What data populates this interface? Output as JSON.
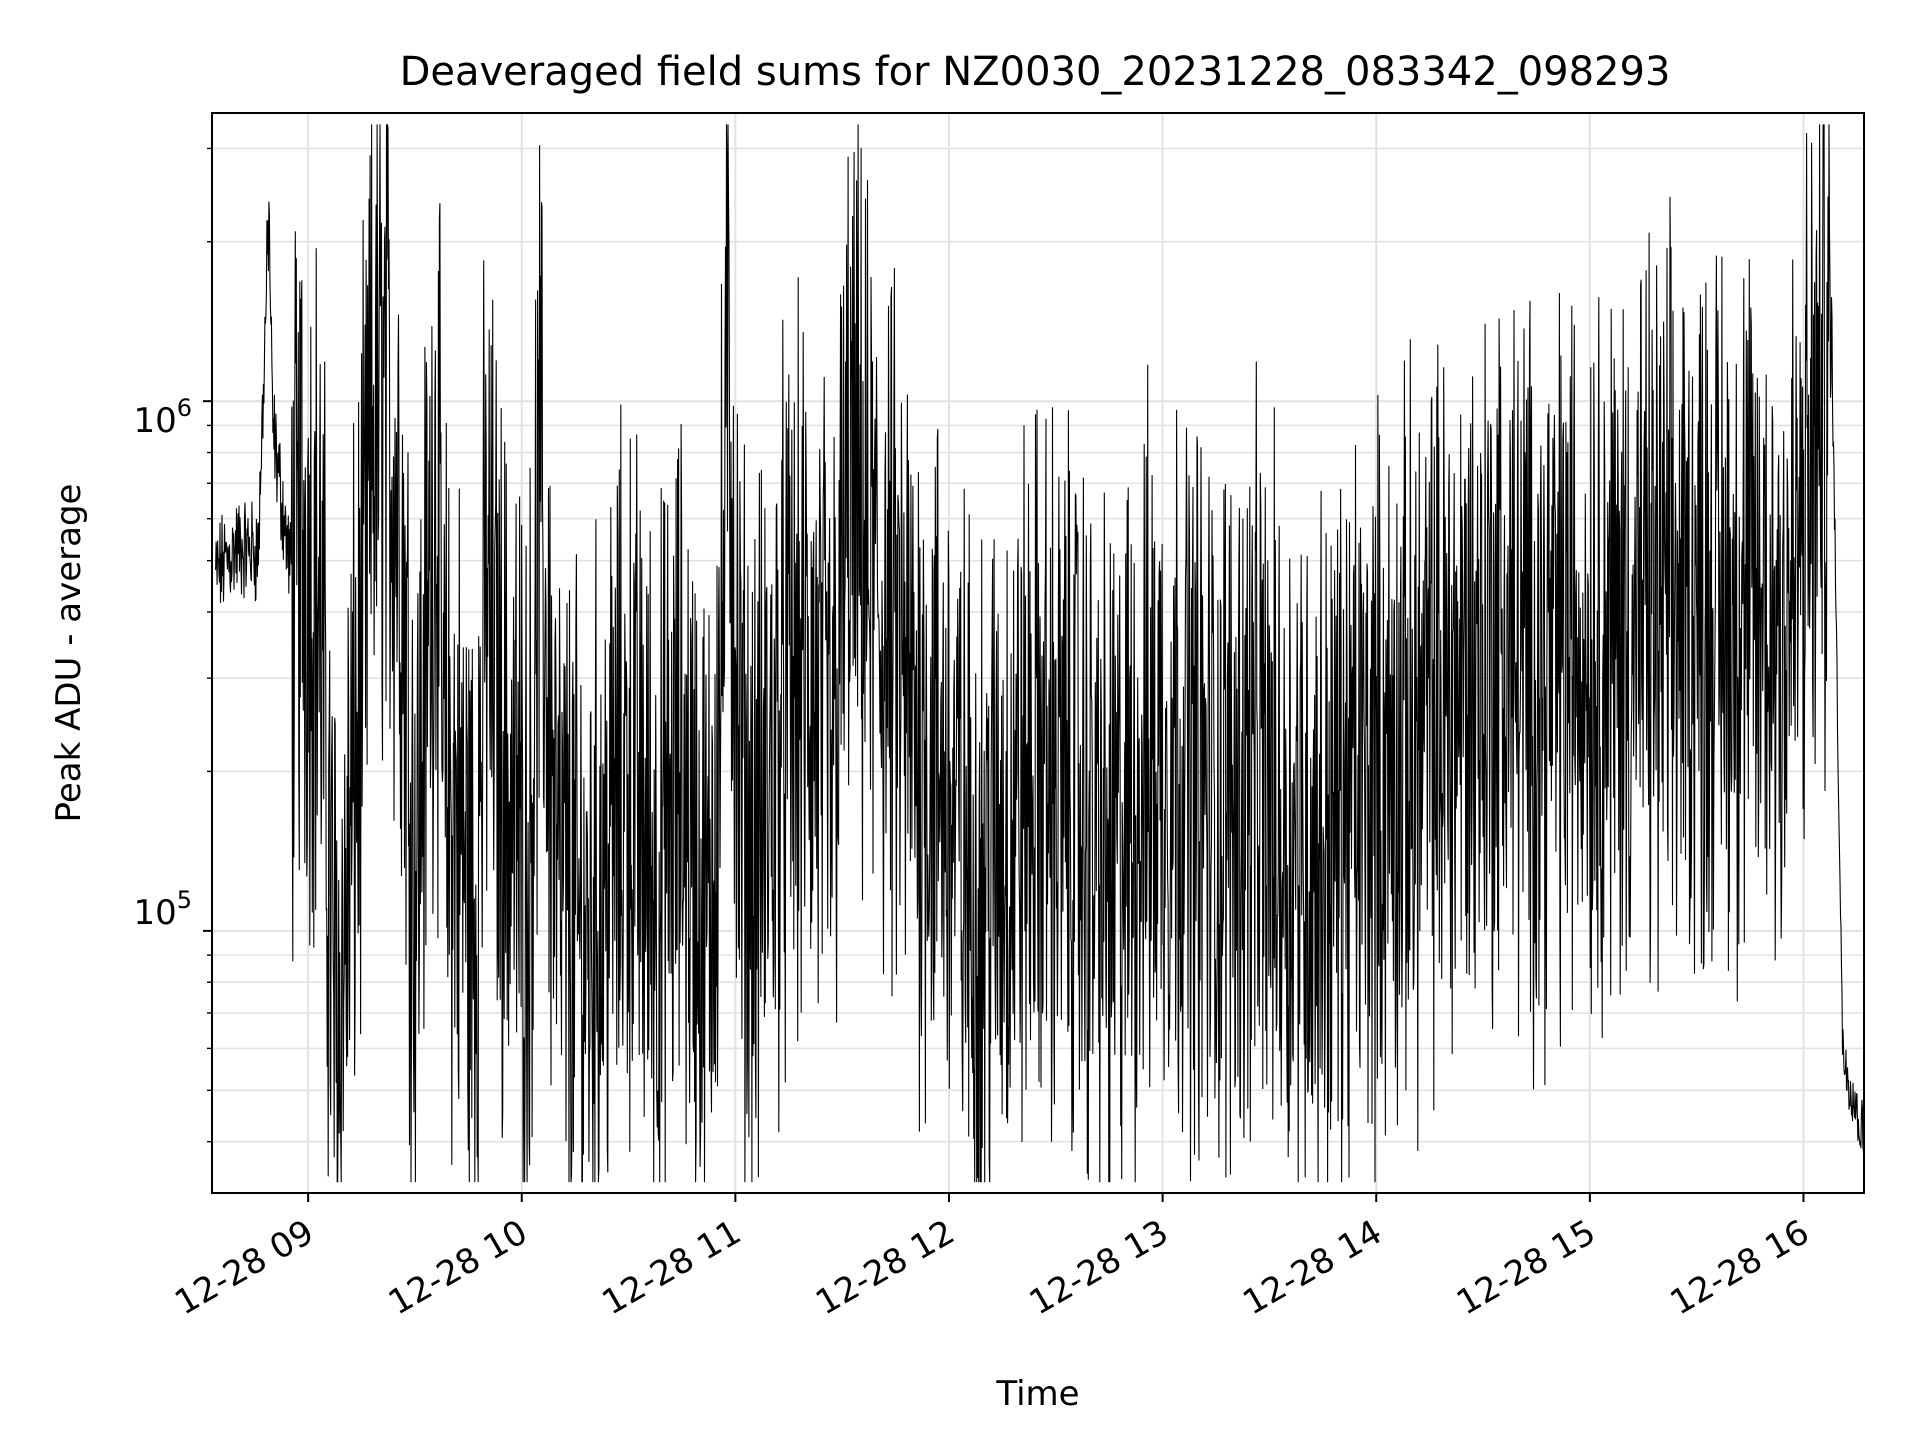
{
  "chart_data": {
    "type": "line",
    "title": "Deaveraged field sums for NZ0030_20231228_083342_098293",
    "xlabel": "Time",
    "ylabel": "Peak ADU - average",
    "y_scale": "log",
    "ylim": [
      32000,
      3500000
    ],
    "xlim": [
      "2023-12-28 08:33",
      "2023-12-28 16:17"
    ],
    "x_tick_labels": [
      "12-28 09",
      "12-28 10",
      "12-28 11",
      "12-28 12",
      "12-28 13",
      "12-28 14",
      "12-28 15",
      "12-28 16"
    ],
    "x_ticks": [
      "2023-12-28 09:00",
      "2023-12-28 10:00",
      "2023-12-28 11:00",
      "2023-12-28 12:00",
      "2023-12-28 13:00",
      "2023-12-28 14:00",
      "2023-12-28 15:00",
      "2023-12-28 16:00"
    ],
    "y_ticks": [
      100000,
      1000000
    ],
    "y_tick_labels": [
      {
        "base": "10",
        "exp": "5"
      },
      {
        "base": "10",
        "exp": "6"
      }
    ],
    "grid": true,
    "line_color": "#000000",
    "series": [
      {
        "x": [
          "2023-12-28 08:34",
          "2023-12-28 08:40",
          "2023-12-28 08:46",
          "2023-12-28 08:49",
          "2023-12-28 08:50",
          "2023-12-28 08:52",
          "2023-12-28 08:55",
          "2023-12-28 08:56",
          "2023-12-28 08:58",
          "2023-12-28 09:03",
          "2023-12-28 09:05",
          "2023-12-28 09:07",
          "2023-12-28 09:09",
          "2023-12-28 09:12",
          "2023-12-28 09:15",
          "2023-12-28 09:18",
          "2023-12-28 09:22",
          "2023-12-28 09:26",
          "2023-12-28 09:30",
          "2023-12-28 09:36",
          "2023-12-28 09:38",
          "2023-12-28 09:43",
          "2023-12-28 09:47",
          "2023-12-28 09:50",
          "2023-12-28 09:55",
          "2023-12-28 10:02",
          "2023-12-28 10:05",
          "2023-12-28 10:10",
          "2023-12-28 10:18",
          "2023-12-28 10:25",
          "2023-12-28 10:30",
          "2023-12-28 10:38",
          "2023-12-28 10:45",
          "2023-12-28 10:52",
          "2023-12-28 10:56",
          "2023-12-28 10:58",
          "2023-12-28 11:01",
          "2023-12-28 11:05",
          "2023-12-28 11:13",
          "2023-12-28 11:20",
          "2023-12-28 11:27",
          "2023-12-28 11:32",
          "2023-12-28 11:40",
          "2023-12-28 11:50",
          "2023-12-28 11:58",
          "2023-12-28 12:08",
          "2023-12-28 12:15",
          "2023-12-28 12:25",
          "2023-12-28 12:35",
          "2023-12-28 12:45",
          "2023-12-28 12:55",
          "2023-12-28 13:05",
          "2023-12-28 13:15",
          "2023-12-28 13:25",
          "2023-12-28 13:35",
          "2023-12-28 13:45",
          "2023-12-28 13:55",
          "2023-12-28 14:05",
          "2023-12-28 14:15",
          "2023-12-28 14:25",
          "2023-12-28 14:35",
          "2023-12-28 14:45",
          "2023-12-28 14:55",
          "2023-12-28 15:05",
          "2023-12-28 15:15",
          "2023-12-28 15:25",
          "2023-12-28 15:35",
          "2023-12-28 15:45",
          "2023-12-28 15:52",
          "2023-12-28 15:58",
          "2023-12-28 16:02",
          "2023-12-28 16:06",
          "2023-12-28 16:08",
          "2023-12-28 16:11",
          "2023-12-28 16:17"
        ],
        "y_approx_envelope": [
          470000,
          530000,
          520000,
          2300000,
          900000,
          700000,
          480000,
          400000,
          580000,
          450000,
          200000,
          80000,
          70000,
          150000,
          300000,
          900000,
          1000000,
          600000,
          120000,
          800000,
          200000,
          150000,
          100000,
          450000,
          200000,
          130000,
          650000,
          120000,
          90000,
          150000,
          200000,
          120000,
          200000,
          90000,
          300000,
          1200000,
          200000,
          130000,
          250000,
          300000,
          200000,
          700000,
          400000,
          250000,
          200000,
          110000,
          150000,
          200000,
          180000,
          120000,
          200000,
          220000,
          160000,
          200000,
          150000,
          140000,
          180000,
          200000,
          250000,
          300000,
          350000,
          300000,
          350000,
          350000,
          380000,
          400000,
          420000,
          400000,
          380000,
          450000,
          700000,
          1000000,
          1300000,
          60000,
          40000
        ]
      }
    ]
  }
}
